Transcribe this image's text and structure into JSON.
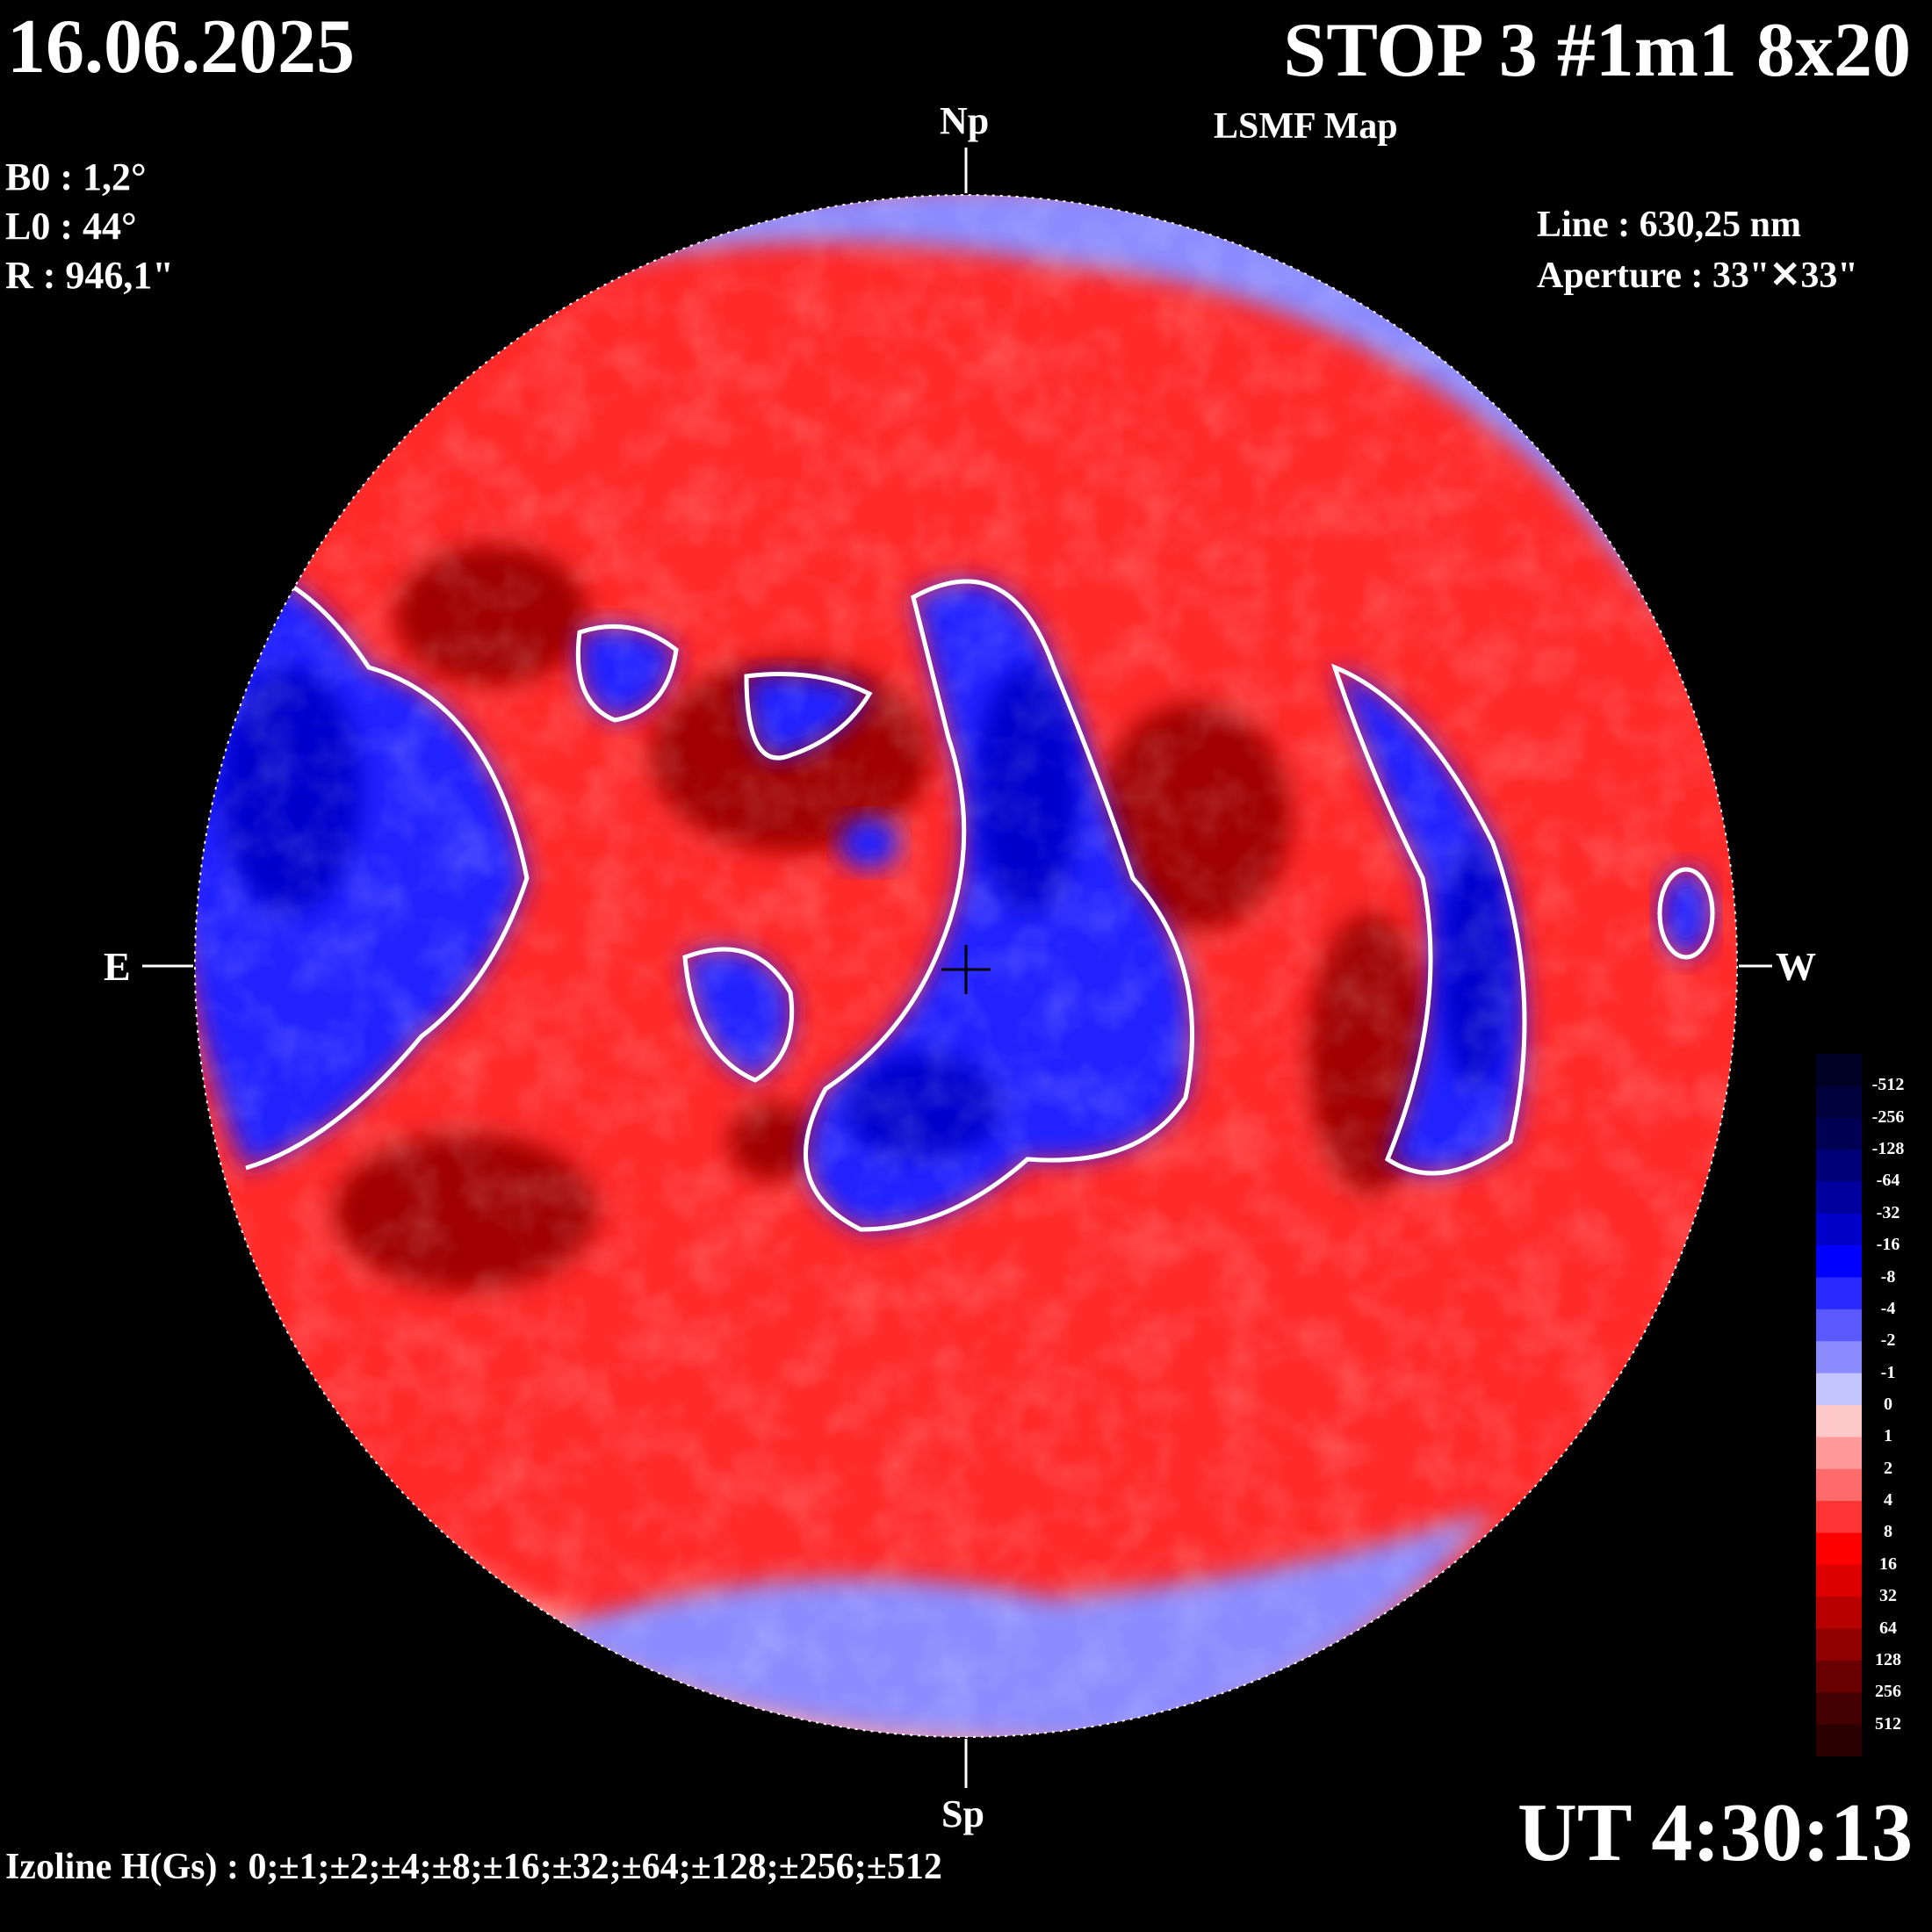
{
  "header": {
    "date": "16.06.2025",
    "title": "STOP 3 #1m1 8x20",
    "subtitle": "LSMF  Map"
  },
  "parameters": {
    "b0": "B0 : 1,2°",
    "l0": "L0 : 44°",
    "r": "R  : 946,1\""
  },
  "instrument": {
    "line": "Line :  630,25 nm",
    "aperture": "Aperture : 33\"✕33\""
  },
  "orientation": {
    "north": "Np",
    "south": "Sp",
    "east": "E",
    "west": "W"
  },
  "time": "UT 4:30:13",
  "izoline": "Izoline H(Gs) : 0;±1;±2;±4;±8;±16;±32;±64;±128;±256;±512",
  "colorbar": {
    "labels": [
      "-512",
      "-256",
      "-128",
      "-64",
      "-32",
      "-16",
      "-8",
      "-4",
      "-2",
      "-1",
      "0",
      "1",
      "2",
      "4",
      "8",
      "16",
      "32",
      "64",
      "128",
      "256",
      "512"
    ],
    "colors": [
      "#000022",
      "#00003a",
      "#000055",
      "#000078",
      "#00009e",
      "#0000c8",
      "#0000ff",
      "#2b2bff",
      "#5959ff",
      "#8c8cff",
      "#c4c4ff",
      "#ffc8c8",
      "#ff9a9a",
      "#ff6a6a",
      "#ff3535",
      "#ff0000",
      "#dd0000",
      "#b80000",
      "#900000",
      "#690000",
      "#440000",
      "#2a0000"
    ]
  },
  "map_colors": {
    "strong_negative": "#0000cc",
    "negative": "#2020ff",
    "weak_negative": "#8c8cff",
    "weak_positive": "#ff9a9a",
    "positive": "#ff2a2a",
    "strong_positive": "#a00000",
    "contour": "#ffffff"
  }
}
